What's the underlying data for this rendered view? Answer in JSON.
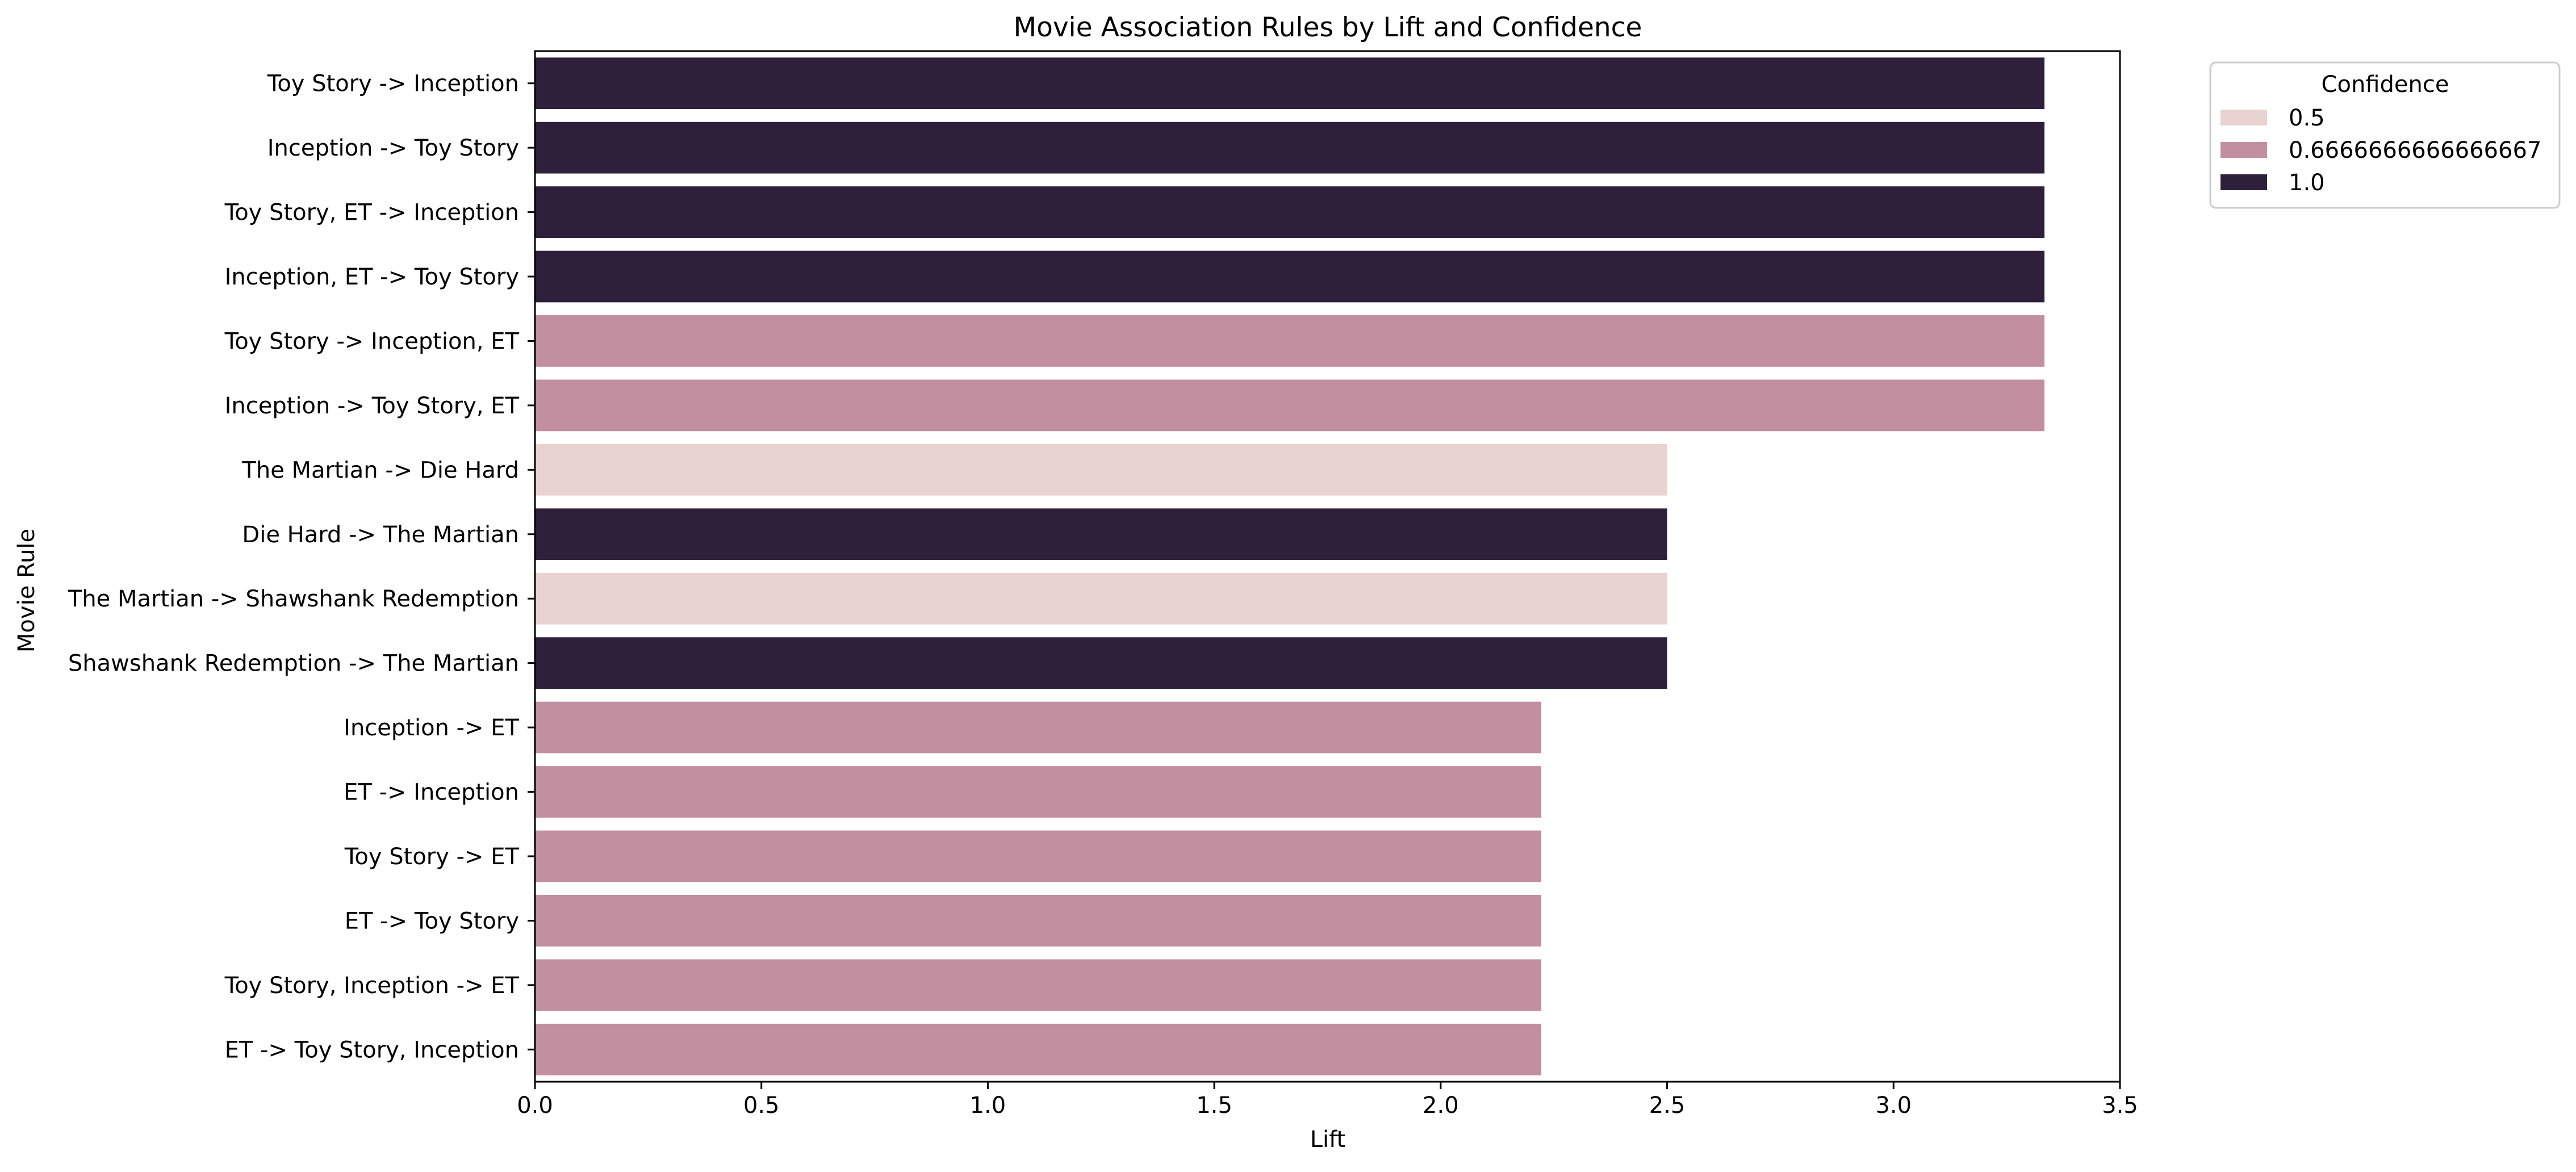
{
  "chart_data": {
    "type": "bar",
    "orientation": "horizontal",
    "title": "Movie Association Rules by Lift and Confidence",
    "xlabel": "Lift",
    "ylabel": "Movie Rule",
    "xlim": [
      0,
      3.5
    ],
    "xticks": [
      "0.0",
      "0.5",
      "1.0",
      "1.5",
      "2.0",
      "2.5",
      "3.0",
      "3.5"
    ],
    "grid": false,
    "legend": {
      "title": "Confidence",
      "placement": "outside-top-right",
      "entries": [
        {
          "label": "0.5",
          "color": "#e8d3d0"
        },
        {
          "label": "0.6666666666666667",
          "color": "#c28fa0"
        },
        {
          "label": "1.0",
          "color": "#2e203b"
        }
      ]
    },
    "categories": [
      "Toy Story -> Inception",
      "Inception -> Toy Story",
      "Toy Story, ET -> Inception",
      "Inception, ET -> Toy Story",
      "Toy Story -> Inception, ET",
      "Inception -> Toy Story, ET",
      "The Martian -> Die Hard",
      "Die Hard -> The Martian",
      "The Martian -> Shawshank Redemption",
      "Shawshank Redemption -> The Martian",
      "Inception -> ET",
      "ET -> Inception",
      "Toy Story -> ET",
      "ET -> Toy Story",
      "Toy Story, Inception -> ET",
      "ET -> Toy Story, Inception"
    ],
    "values": [
      3.3333,
      3.3333,
      3.3333,
      3.3333,
      3.3333,
      3.3333,
      2.5,
      2.5,
      2.5,
      2.5,
      2.2222,
      2.2222,
      2.2222,
      2.2222,
      2.2222,
      2.2222
    ],
    "confidence": [
      1.0,
      1.0,
      1.0,
      1.0,
      0.6666666666666667,
      0.6666666666666667,
      0.5,
      1.0,
      0.5,
      1.0,
      0.6666666666666667,
      0.6666666666666667,
      0.6666666666666667,
      0.6666666666666667,
      0.6666666666666667,
      0.6666666666666667
    ]
  }
}
